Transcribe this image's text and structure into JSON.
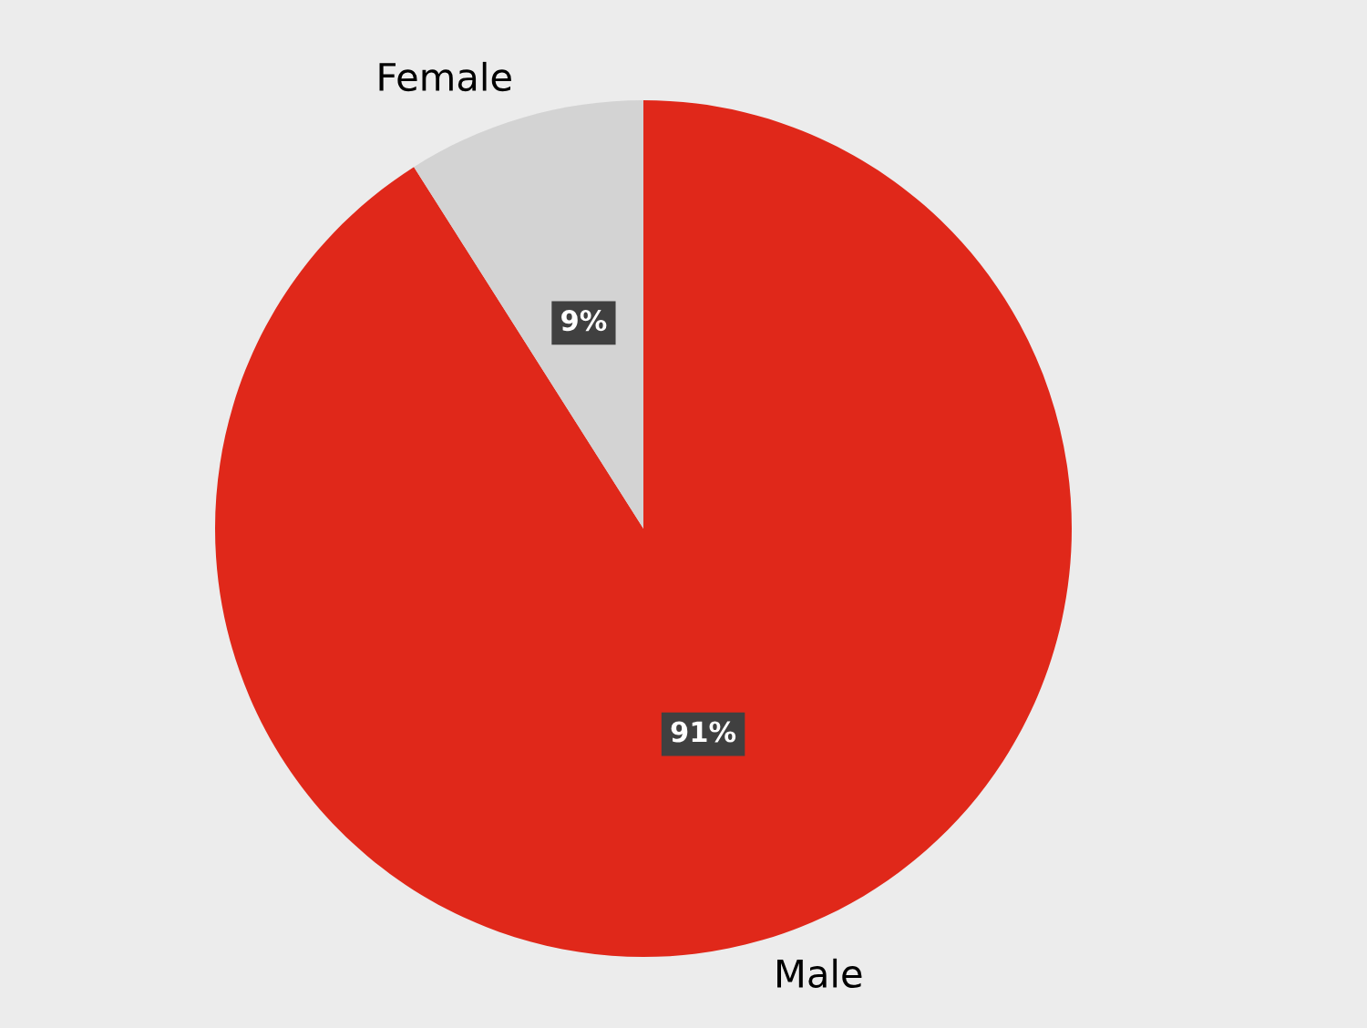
{
  "chart_data": {
    "type": "pie",
    "categories": [
      "Male",
      "Female"
    ],
    "values": [
      91,
      9
    ],
    "colors": [
      "#e0281a",
      "#d3d3d3"
    ],
    "value_labels": [
      "91%",
      "9%"
    ],
    "legend": false
  }
}
